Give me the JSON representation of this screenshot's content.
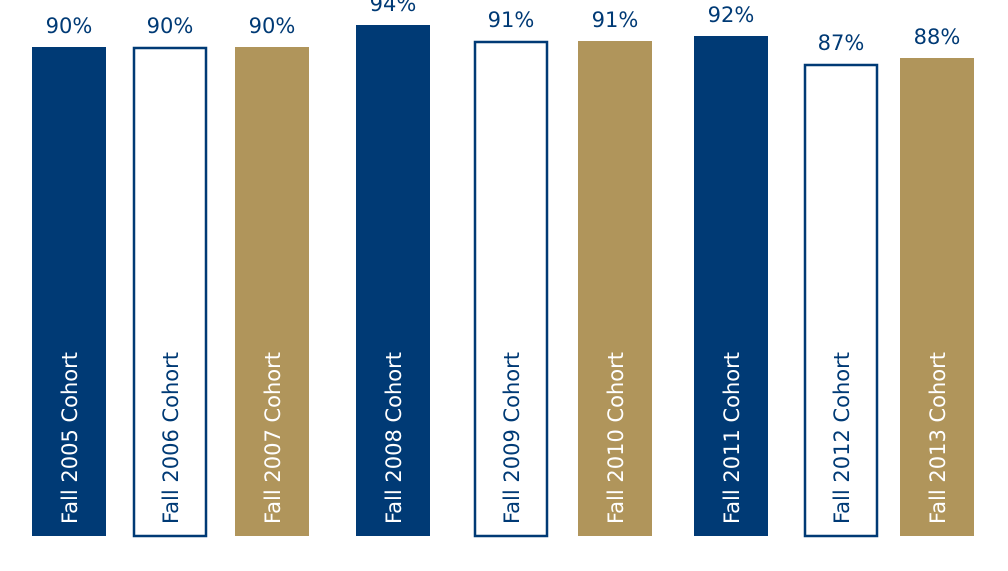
{
  "chart_data": {
    "type": "bar",
    "categories": [
      "Fall 2005 Cohort",
      "Fall 2006 Cohort",
      "Fall 2007 Cohort",
      "Fall 2008 Cohort",
      "Fall 2009 Cohort",
      "Fall 2010 Cohort",
      "Fall 2011 Cohort",
      "Fall 2012 Cohort",
      "Fall 2013 Cohort"
    ],
    "values": [
      90,
      90,
      90,
      94,
      91,
      91,
      92,
      87,
      88
    ],
    "value_labels": [
      "90%",
      "90%",
      "90%",
      "94%",
      "91%",
      "91%",
      "92%",
      "87%",
      "88%"
    ],
    "bar_styles": [
      "navy",
      "outline",
      "gold",
      "navy",
      "outline",
      "gold",
      "navy",
      "outline",
      "gold"
    ],
    "colors": {
      "navy": "#003a75",
      "gold": "#b0955b",
      "outline_stroke": "#003a75",
      "outline_fill": "#ffffff",
      "label_on_dark": "#ffffff",
      "label_on_light": "#003a75"
    },
    "title": "",
    "xlabel": "",
    "ylabel": "",
    "ylim": [
      0,
      100
    ],
    "grid": false,
    "legend": "none"
  }
}
